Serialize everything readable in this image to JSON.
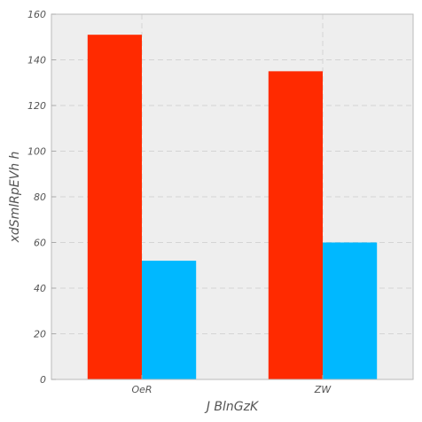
{
  "chart_data": {
    "type": "bar",
    "title": "",
    "xlabel": "J BlnGzK",
    "ylabel": "xdSmlRpEVh h",
    "categories": [
      "OeR",
      "ZW"
    ],
    "series": [
      {
        "values": [
          151,
          135
        ],
        "color": "#ff2a00"
      },
      {
        "values": [
          52,
          60
        ],
        "color": "#00b8ff"
      }
    ],
    "ylim": [
      0,
      160
    ],
    "yticks": [
      0,
      20,
      40,
      60,
      80,
      100,
      120,
      140,
      160
    ],
    "grid": true,
    "legend": "none",
    "background": "#eeeeee",
    "grid_color": "#d4d4d4"
  }
}
